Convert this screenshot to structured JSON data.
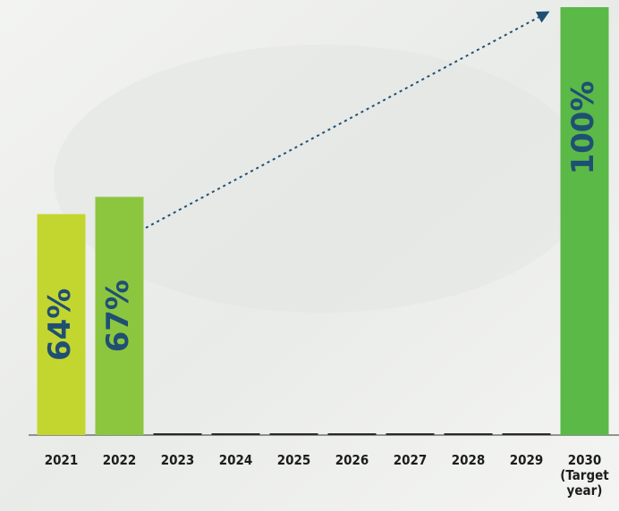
{
  "chart_data": {
    "type": "bar",
    "categories": [
      "2021",
      "2022",
      "2023",
      "2024",
      "2025",
      "2026",
      "2027",
      "2028",
      "2029",
      "2030 (Target year)"
    ],
    "values": [
      64,
      67,
      null,
      null,
      null,
      null,
      null,
      null,
      null,
      100
    ],
    "value_labels": [
      "64%",
      "67%",
      null,
      null,
      null,
      null,
      null,
      null,
      null,
      "100%"
    ],
    "colors": [
      "#c3d62f",
      "#8cc63f",
      null,
      null,
      null,
      null,
      null,
      null,
      null,
      "#5bb947"
    ],
    "ylim": [
      38,
      100
    ]
  }
}
